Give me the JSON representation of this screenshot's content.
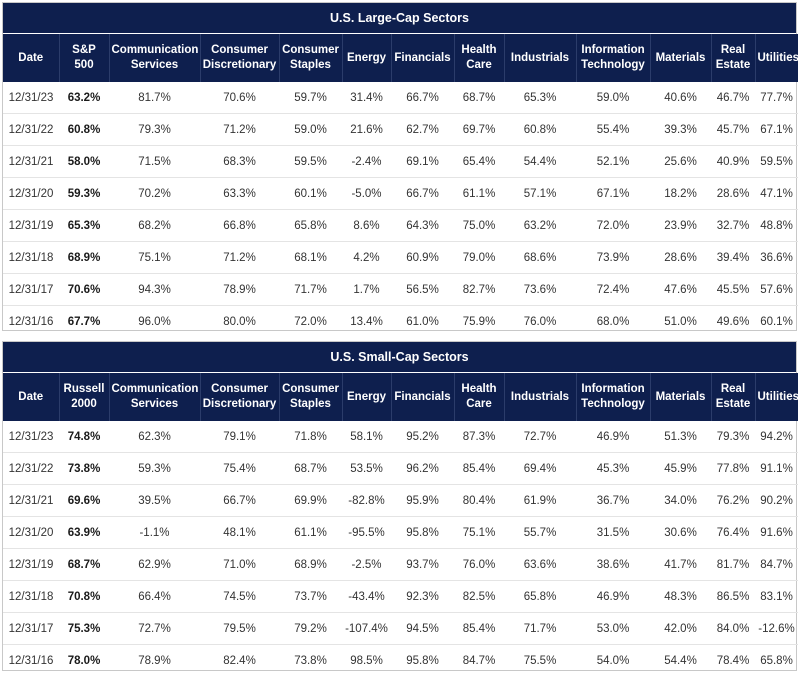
{
  "large_cap": {
    "title": "U.S. Large-Cap Sectors",
    "headers": [
      "Date",
      "S&P 500",
      "Communication Services",
      "Consumer Discretionary",
      "Consumer Staples",
      "Energy",
      "Financials",
      "Health Care",
      "Industrials",
      "Information Technology",
      "Materials",
      "Real Estate",
      "Utilities"
    ],
    "rows": [
      [
        "12/31/23",
        "63.2%",
        "81.7%",
        "70.6%",
        "59.7%",
        "31.4%",
        "66.7%",
        "68.7%",
        "65.3%",
        "59.0%",
        "40.6%",
        "46.7%",
        "77.7%"
      ],
      [
        "12/31/22",
        "60.8%",
        "79.3%",
        "71.2%",
        "59.0%",
        "21.6%",
        "62.7%",
        "69.7%",
        "60.8%",
        "55.4%",
        "39.3%",
        "45.7%",
        "67.1%"
      ],
      [
        "12/31/21",
        "58.0%",
        "71.5%",
        "68.3%",
        "59.5%",
        "-2.4%",
        "69.1%",
        "65.4%",
        "54.4%",
        "52.1%",
        "25.6%",
        "40.9%",
        "59.5%"
      ],
      [
        "12/31/20",
        "59.3%",
        "70.2%",
        "63.3%",
        "60.1%",
        "-5.0%",
        "66.7%",
        "61.1%",
        "57.1%",
        "67.1%",
        "18.2%",
        "28.6%",
        "47.1%"
      ],
      [
        "12/31/19",
        "65.3%",
        "68.2%",
        "66.8%",
        "65.8%",
        "8.6%",
        "64.3%",
        "75.0%",
        "63.2%",
        "72.0%",
        "23.9%",
        "32.7%",
        "48.8%"
      ],
      [
        "12/31/18",
        "68.9%",
        "75.1%",
        "71.2%",
        "68.1%",
        "4.2%",
        "60.9%",
        "79.0%",
        "68.6%",
        "73.9%",
        "28.6%",
        "39.4%",
        "36.6%"
      ],
      [
        "12/31/17",
        "70.6%",
        "94.3%",
        "78.9%",
        "71.7%",
        "1.7%",
        "56.5%",
        "82.7%",
        "73.6%",
        "72.4%",
        "47.6%",
        "45.5%",
        "57.6%"
      ],
      [
        "12/31/16",
        "67.7%",
        "96.0%",
        "80.0%",
        "72.0%",
        "13.4%",
        "61.0%",
        "75.9%",
        "76.0%",
        "68.0%",
        "51.0%",
        "49.6%",
        "60.1%"
      ]
    ]
  },
  "small_cap": {
    "title": "U.S. Small-Cap Sectors",
    "headers": [
      "Date",
      "Russell 2000",
      "Communication Services",
      "Consumer Discretionary",
      "Consumer Staples",
      "Energy",
      "Financials",
      "Health Care",
      "Industrials",
      "Information Technology",
      "Materials",
      "Real Estate",
      "Utilities"
    ],
    "rows": [
      [
        "12/31/23",
        "74.8%",
        "62.3%",
        "79.1%",
        "71.8%",
        "58.1%",
        "95.2%",
        "87.3%",
        "72.7%",
        "46.9%",
        "51.3%",
        "79.3%",
        "94.2%"
      ],
      [
        "12/31/22",
        "73.8%",
        "59.3%",
        "75.4%",
        "68.7%",
        "53.5%",
        "96.2%",
        "85.4%",
        "69.4%",
        "45.3%",
        "45.9%",
        "77.8%",
        "91.1%"
      ],
      [
        "12/31/21",
        "69.6%",
        "39.5%",
        "66.7%",
        "69.9%",
        "-82.8%",
        "95.9%",
        "80.4%",
        "61.9%",
        "36.7%",
        "34.0%",
        "76.2%",
        "90.2%"
      ],
      [
        "12/31/20",
        "63.9%",
        "-1.1%",
        "48.1%",
        "61.1%",
        "-95.5%",
        "95.8%",
        "75.1%",
        "55.7%",
        "31.5%",
        "30.6%",
        "76.4%",
        "91.6%"
      ],
      [
        "12/31/19",
        "68.7%",
        "62.9%",
        "71.0%",
        "68.9%",
        "-2.5%",
        "93.7%",
        "76.0%",
        "63.6%",
        "38.6%",
        "41.7%",
        "81.7%",
        "84.7%"
      ],
      [
        "12/31/18",
        "70.8%",
        "66.4%",
        "74.5%",
        "73.7%",
        "-43.4%",
        "92.3%",
        "82.5%",
        "65.8%",
        "46.9%",
        "48.3%",
        "86.5%",
        "83.1%"
      ],
      [
        "12/31/17",
        "75.3%",
        "72.7%",
        "79.5%",
        "79.2%",
        "-107.4%",
        "94.5%",
        "85.4%",
        "71.7%",
        "53.0%",
        "42.0%",
        "84.0%",
        "-12.6%"
      ],
      [
        "12/31/16",
        "78.0%",
        "78.9%",
        "82.4%",
        "73.8%",
        "98.5%",
        "95.8%",
        "84.7%",
        "75.5%",
        "54.0%",
        "54.4%",
        "78.4%",
        "65.8%"
      ]
    ]
  }
}
